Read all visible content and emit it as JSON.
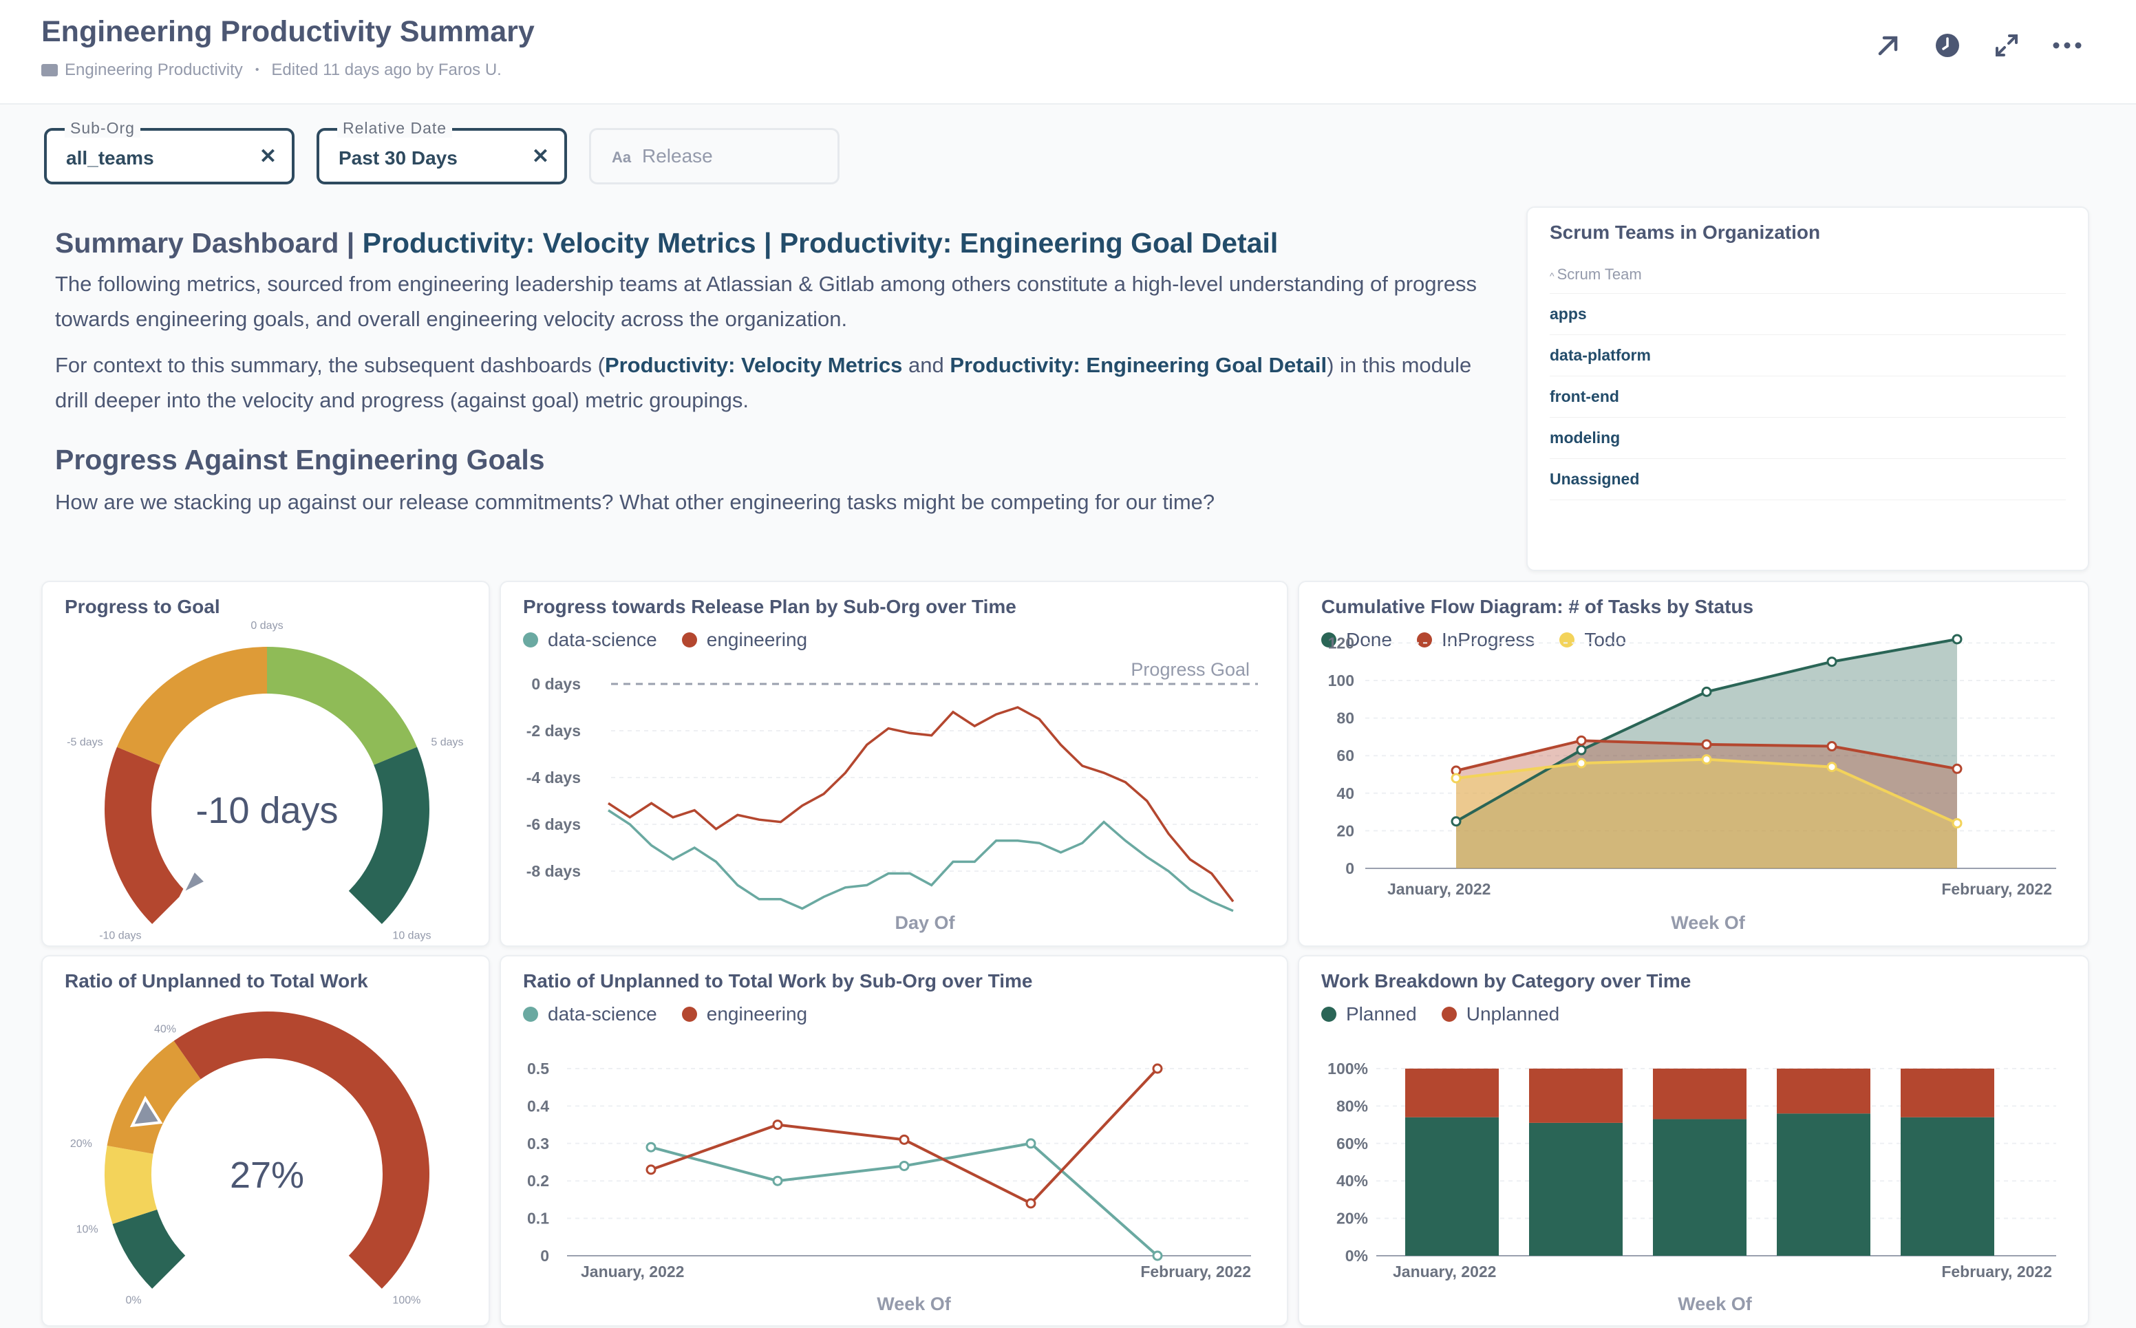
{
  "header": {
    "title": "Engineering Productivity Summary",
    "collection": "Engineering Productivity",
    "edited": "Edited 11 days ago by Faros U."
  },
  "filters": {
    "sub_org": {
      "label": "Sub-Org",
      "value": "all_teams"
    },
    "relative_date": {
      "label": "Relative Date",
      "value": "Past 30 Days"
    },
    "release": {
      "placeholder": "Release",
      "icon_text": "Aa"
    }
  },
  "intro": {
    "heading_prefix": "Summary Dashboard | ",
    "heading_link1": "Productivity: Velocity Metrics",
    "heading_sep": " | ",
    "heading_link2": "Productivity: Engineering Goal Detail",
    "p1": "The following metrics, sourced from engineering leadership teams at Atlassian & Gitlab among others constitute a high-level understanding of progress towards engineering goals, and overall engineering velocity across the organization.",
    "p2_a": "For context to this summary, the subsequent dashboards (",
    "p2_link1": "Productivity: Velocity Metrics",
    "p2_b": " and ",
    "p2_link2": "Productivity: Engineering Goal Detail",
    "p2_c": ") in this module drill deeper into the velocity and progress (against goal) metric groupings.",
    "h2": "Progress Against Engineering Goals",
    "p3": "How are we stacking up against our release commitments? What other engineering tasks might be competing for our time?"
  },
  "scrum": {
    "title": "Scrum Teams in Organization",
    "column": "Scrum Team",
    "rows": [
      "apps",
      "data-platform",
      "front-end",
      "modeling",
      "Unassigned"
    ]
  },
  "colors": {
    "green_dark": "#2a6556",
    "red": "#b4472f",
    "orange": "#de9b37",
    "yellow": "#f3d35a",
    "light_green": "#8fbb57",
    "teal": "#6aa9a1",
    "navy": "#234c6a"
  },
  "cards": {
    "progress_goal": {
      "title": "Progress to Goal",
      "value": "-10 days",
      "ticks": [
        "0 days",
        "-5 days",
        "5 days",
        "-10 days",
        "10 days"
      ]
    },
    "release_plan": {
      "title": "Progress towards Release Plan by Sub-Org over Time",
      "goal_label": "Progress Goal"
    },
    "cfd": {
      "title": "Cumulative Flow Diagram: # of Tasks by Status"
    },
    "unplanned_ratio": {
      "title": "Ratio of Unplanned to Total Work",
      "value": "27%",
      "ticks": [
        "40%",
        "20%",
        "10%",
        "0%",
        "100%"
      ]
    },
    "unplanned_time": {
      "title": "Ratio of Unplanned to Total Work by Sub-Org over Time"
    },
    "breakdown": {
      "title": "Work Breakdown by Category over Time"
    }
  },
  "chart_data": [
    {
      "type": "gauge",
      "title": "Progress to Goal",
      "value": -10,
      "range": [
        -10,
        10
      ],
      "ticks": [
        "-10 days",
        "-5 days",
        "0 days",
        "5 days",
        "10 days"
      ]
    },
    {
      "type": "line",
      "title": "Progress towards Release Plan by Sub-Org over Time",
      "xlabel": "Day Of",
      "ylabel": "",
      "ylim": [
        -10,
        0
      ],
      "yticks": [
        "0 days",
        "-2 days",
        "-4 days",
        "-6 days",
        "-8 days"
      ],
      "goal_line": {
        "label": "Progress Goal",
        "value": 0
      },
      "series": [
        {
          "name": "data-science",
          "values": [
            -5.4,
            -6.0,
            -6.9,
            -7.5,
            -7.0,
            -7.6,
            -8.6,
            -9.2,
            -9.2,
            -9.6,
            -9.1,
            -8.7,
            -8.6,
            -8.1,
            -8.1,
            -8.6,
            -7.6,
            -7.6,
            -6.7,
            -6.7,
            -6.8,
            -7.2,
            -6.8,
            -5.9,
            -6.7,
            -7.4,
            -8.0,
            -8.8,
            -9.3,
            -9.7
          ]
        },
        {
          "name": "engineering",
          "values": [
            -5.1,
            -5.7,
            -5.1,
            -5.7,
            -5.4,
            -6.2,
            -5.6,
            -5.8,
            -5.9,
            -5.2,
            -4.7,
            -3.8,
            -2.6,
            -1.9,
            -2.1,
            -2.2,
            -1.2,
            -1.8,
            -1.3,
            -1.0,
            -1.5,
            -2.6,
            -3.5,
            -3.8,
            -4.2,
            -5.0,
            -6.4,
            -7.5,
            -8.1,
            -9.3
          ]
        }
      ]
    },
    {
      "type": "area",
      "title": "Cumulative Flow Diagram: # of Tasks by Status",
      "xlabel": "Week Of",
      "ylabel": "",
      "ylim": [
        0,
        130
      ],
      "x": [
        "January, 2022",
        "",
        "",
        "",
        "February, 2022"
      ],
      "series": [
        {
          "name": "Done",
          "values": [
            25,
            63,
            94,
            110,
            122
          ]
        },
        {
          "name": "InProgress",
          "values": [
            52,
            68,
            66,
            65,
            53
          ]
        },
        {
          "name": "Todo",
          "values": [
            48,
            56,
            58,
            54,
            24
          ]
        }
      ]
    },
    {
      "type": "gauge",
      "title": "Ratio of Unplanned to Total Work",
      "value": 27,
      "range": [
        0,
        100
      ],
      "ticks": [
        "0%",
        "10%",
        "20%",
        "40%",
        "100%"
      ]
    },
    {
      "type": "line",
      "title": "Ratio of Unplanned to Total Work by Sub-Org over Time",
      "xlabel": "Week Of",
      "ylabel": "",
      "ylim": [
        0,
        0.5
      ],
      "x": [
        "January, 2022",
        "",
        "",
        "",
        "February, 2022"
      ],
      "series": [
        {
          "name": "data-science",
          "values": [
            0.29,
            0.2,
            0.24,
            0.3,
            0.0
          ]
        },
        {
          "name": "engineering",
          "values": [
            0.23,
            0.35,
            0.31,
            0.14,
            0.5
          ]
        }
      ]
    },
    {
      "type": "bar",
      "title": "Work Breakdown by Category over Time",
      "xlabel": "Week Of",
      "ylabel": "",
      "ylim": [
        0,
        100
      ],
      "stacked": true,
      "categories": [
        "January, 2022",
        "",
        "",
        "",
        "February, 2022"
      ],
      "series": [
        {
          "name": "Planned",
          "values": [
            74,
            71,
            73,
            76,
            74
          ]
        },
        {
          "name": "Unplanned",
          "values": [
            26,
            29,
            27,
            24,
            26
          ]
        }
      ]
    }
  ]
}
